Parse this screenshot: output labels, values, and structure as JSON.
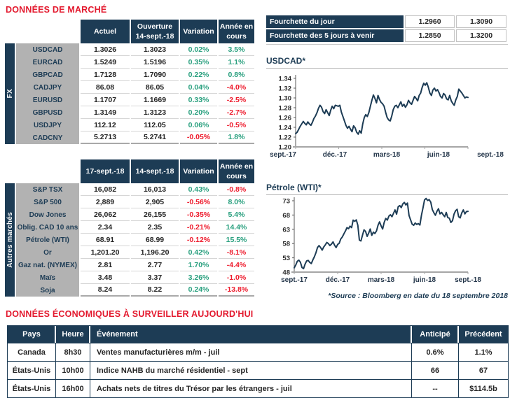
{
  "page": {
    "title_market": "DONNÉES DE MARCHÉ",
    "title_econ": "DONNÉES ÉCONOMIQUES À SURVEILLER AUJOURD'HUI",
    "source_note": "*Source : Bloomberg en date du 18 septembre 2018"
  },
  "colors": {
    "navy": "#1d3c55",
    "title_red": "#e3192e",
    "positive_green": "#2aa07f",
    "negative_red": "#ee1c2d",
    "label_gray": "#b2b2b2"
  },
  "fx_table": {
    "group_label": "FX",
    "headers": [
      [
        "Actuel"
      ],
      [
        "Ouverture",
        "14-sept.-18"
      ],
      [
        "Variation"
      ],
      [
        "Année en",
        "cours"
      ]
    ],
    "rows": [
      {
        "label": "USDCAD",
        "v1": "1.3026",
        "v2": "1.3023",
        "var": "0.02%",
        "ytd": "3.5%"
      },
      {
        "label": "EURCAD",
        "v1": "1.5249",
        "v2": "1.5196",
        "var": "0.35%",
        "ytd": "1.1%"
      },
      {
        "label": "GBPCAD",
        "v1": "1.7128",
        "v2": "1.7090",
        "var": "0.22%",
        "ytd": "0.8%"
      },
      {
        "label": "CADJPY",
        "v1": "86.08",
        "v2": "86.05",
        "var": "0.04%",
        "ytd": "-4.0%"
      },
      {
        "label": "EURUSD",
        "v1": "1.1707",
        "v2": "1.1669",
        "var": "0.33%",
        "ytd": "-2.5%"
      },
      {
        "label": "GBPUSD",
        "v1": "1.3149",
        "v2": "1.3123",
        "var": "0.20%",
        "ytd": "-2.7%"
      },
      {
        "label": "USDJPY",
        "v1": "112.12",
        "v2": "112.05",
        "var": "0.06%",
        "ytd": "-0.5%"
      },
      {
        "label": "CADCNY",
        "v1": "5.2713",
        "v2": "5.2741",
        "var": "-0.05%",
        "ytd": "1.8%"
      }
    ]
  },
  "markets_table": {
    "group_label": "Autres marchés",
    "headers": [
      [
        "17-sept.-18"
      ],
      [
        "14-sept.-18"
      ],
      [
        "Variation"
      ],
      [
        "Année en",
        "cours"
      ]
    ],
    "rows": [
      {
        "label": "S&P TSX",
        "v1": "16,082",
        "v2": "16,013",
        "var": "0.43%",
        "ytd": "-0.8%"
      },
      {
        "label": "S&P 500",
        "v1": "2,889",
        "v2": "2,905",
        "var": "-0.56%",
        "ytd": "8.0%"
      },
      {
        "label": "Dow Jones",
        "v1": "26,062",
        "v2": "26,155",
        "var": "-0.35%",
        "ytd": "5.4%"
      },
      {
        "label": "Oblig. CAD 10 ans",
        "v1": "2.34",
        "v2": "2.35",
        "var": "-0.21%",
        "ytd": "14.4%"
      },
      {
        "label": "Pétrole (WTI)",
        "v1": "68.91",
        "v2": "68.99",
        "var": "-0.12%",
        "ytd": "15.5%"
      },
      {
        "label": "Or",
        "v1": "1,201.20",
        "v2": "1,196.20",
        "var": "0.42%",
        "ytd": "-8.1%"
      },
      {
        "label": "Gaz nat. (NYMEX)",
        "v1": "2.81",
        "v2": "2.77",
        "var": "1.70%",
        "ytd": "-4.4%"
      },
      {
        "label": "Maïs",
        "v1": "3.48",
        "v2": "3.37",
        "var": "3.26%",
        "ytd": "-1.0%"
      },
      {
        "label": "Soja",
        "v1": "8.24",
        "v2": "8.22",
        "var": "0.24%",
        "ytd": "-13.8%"
      }
    ]
  },
  "ranges": {
    "rows": [
      {
        "label": "Fourchette du jour",
        "low": "1.2960",
        "high": "1.3090"
      },
      {
        "label": "Fourchette des 5 jours à venir",
        "low": "1.2850",
        "high": "1.3200"
      }
    ]
  },
  "chart_data": [
    {
      "type": "line",
      "name": "usdcad",
      "title": "USDCAD*",
      "x_labels": [
        "sept.-17",
        "déc.-17",
        "mars-18",
        "juin-18",
        "sept.-18"
      ],
      "y_tick_labels": [
        "1.20",
        "1.22",
        "1.24",
        "1.26",
        "1.28",
        "1.30",
        "1.32",
        "1.34"
      ],
      "y_ticks": [
        1.2,
        1.22,
        1.24,
        1.26,
        1.28,
        1.3,
        1.32,
        1.34
      ],
      "ylim": [
        1.2,
        1.34
      ],
      "grid": false,
      "line_color": "#1d3c55",
      "values": [
        1.227,
        1.23,
        1.236,
        1.242,
        1.247,
        1.252,
        1.248,
        1.245,
        1.251,
        1.247,
        1.244,
        1.25,
        1.258,
        1.263,
        1.27,
        1.279,
        1.285,
        1.281,
        1.272,
        1.268,
        1.276,
        1.27,
        1.264,
        1.275,
        1.283,
        1.278,
        1.285,
        1.284,
        1.283,
        1.285,
        1.271,
        1.262,
        1.253,
        1.244,
        1.238,
        1.242,
        1.236,
        1.231,
        1.243,
        1.239,
        1.23,
        1.226,
        1.233,
        1.228,
        1.247,
        1.26,
        1.266,
        1.262,
        1.27,
        1.283,
        1.295,
        1.306,
        1.299,
        1.29,
        1.305,
        1.297,
        1.291,
        1.288,
        1.283,
        1.271,
        1.26,
        1.255,
        1.253,
        1.263,
        1.276,
        1.283,
        1.285,
        1.28,
        1.286,
        1.292,
        1.283,
        1.287,
        1.281,
        1.286,
        1.295,
        1.29,
        1.287,
        1.295,
        1.303,
        1.299,
        1.294,
        1.305,
        1.31,
        1.322,
        1.33,
        1.326,
        1.331,
        1.322,
        1.31,
        1.305,
        1.316,
        1.32,
        1.314,
        1.317,
        1.311,
        1.303,
        1.3,
        1.309,
        1.306,
        1.298,
        1.296,
        1.305,
        1.294,
        1.289,
        1.285,
        1.296,
        1.303,
        1.318,
        1.314,
        1.31,
        1.305,
        1.3,
        1.302,
        1.301
      ]
    },
    {
      "type": "line",
      "name": "wti",
      "title": "Pétrole (WTI)*",
      "x_labels": [
        "sept.-17",
        "déc.-17",
        "mars-18",
        "juin-18",
        "sept.-18"
      ],
      "y_tick_labels": [
        "48",
        "53",
        "58",
        "63",
        "68",
        "73"
      ],
      "y_ticks": [
        48,
        53,
        58,
        63,
        68,
        73
      ],
      "ylim": [
        48,
        73
      ],
      "grid": false,
      "line_color": "#1d3c55",
      "values": [
        49.5,
        50.5,
        51.8,
        52.2,
        51.4,
        49.6,
        49.2,
        50.8,
        51.9,
        52.1,
        51.4,
        51.0,
        52.3,
        53.4,
        54.8,
        56.6,
        57.3,
        56.6,
        55.7,
        56.8,
        57.5,
        58.4,
        58.0,
        57.3,
        57.8,
        58.6,
        57.4,
        56.6,
        57.7,
        58.1,
        59.6,
        60.3,
        61.4,
        62.4,
        63.6,
        63.2,
        64.1,
        63.6,
        66.2,
        65.8,
        66.3,
        64.4,
        59.2,
        58.9,
        60.9,
        62.8,
        62.2,
        60.5,
        61.7,
        63.1,
        60.9,
        62.0,
        61.5,
        62.4,
        64.4,
        65.6,
        64.2,
        63.1,
        65.4,
        66.8,
        66.2,
        67.6,
        68.1,
        67.4,
        68.6,
        69.8,
        68.3,
        70.9,
        71.3,
        70.6,
        71.9,
        72.4,
        71.5,
        72.2,
        67.8,
        66.3,
        64.8,
        64.4,
        65.2,
        64.7,
        65.0,
        64.5,
        67.9,
        70.5,
        73.3,
        73.8,
        73.1,
        73.4,
        72.5,
        69.9,
        68.8,
        67.9,
        69.3,
        70.2,
        68.4,
        68.9,
        68.1,
        67.4,
        68.9,
        67.1,
        66.9,
        65.4,
        66.0,
        68.3,
        69.5,
        70.0,
        67.4,
        67.0,
        68.7,
        69.8,
        68.4,
        69.2,
        69.3
      ]
    }
  ],
  "econ_table": {
    "headers": [
      "Pays",
      "Heure",
      "Événement",
      "Anticipé",
      "Précédent"
    ],
    "rows": [
      {
        "pays": "Canada",
        "heure": "8h30",
        "evenement": "Ventes manufacturières m/m - juil",
        "anticipe": "0.6%",
        "precedent": "1.1%"
      },
      {
        "pays": "États-Unis",
        "heure": "10h00",
        "evenement": "Indice NAHB du marché résidentiel - sept",
        "anticipe": "66",
        "precedent": "67"
      },
      {
        "pays": "États-Unis",
        "heure": "16h00",
        "evenement": "Achats nets de titres du Trésor par les étrangers - juil",
        "anticipe": "--",
        "precedent": "$114.5b"
      }
    ]
  }
}
